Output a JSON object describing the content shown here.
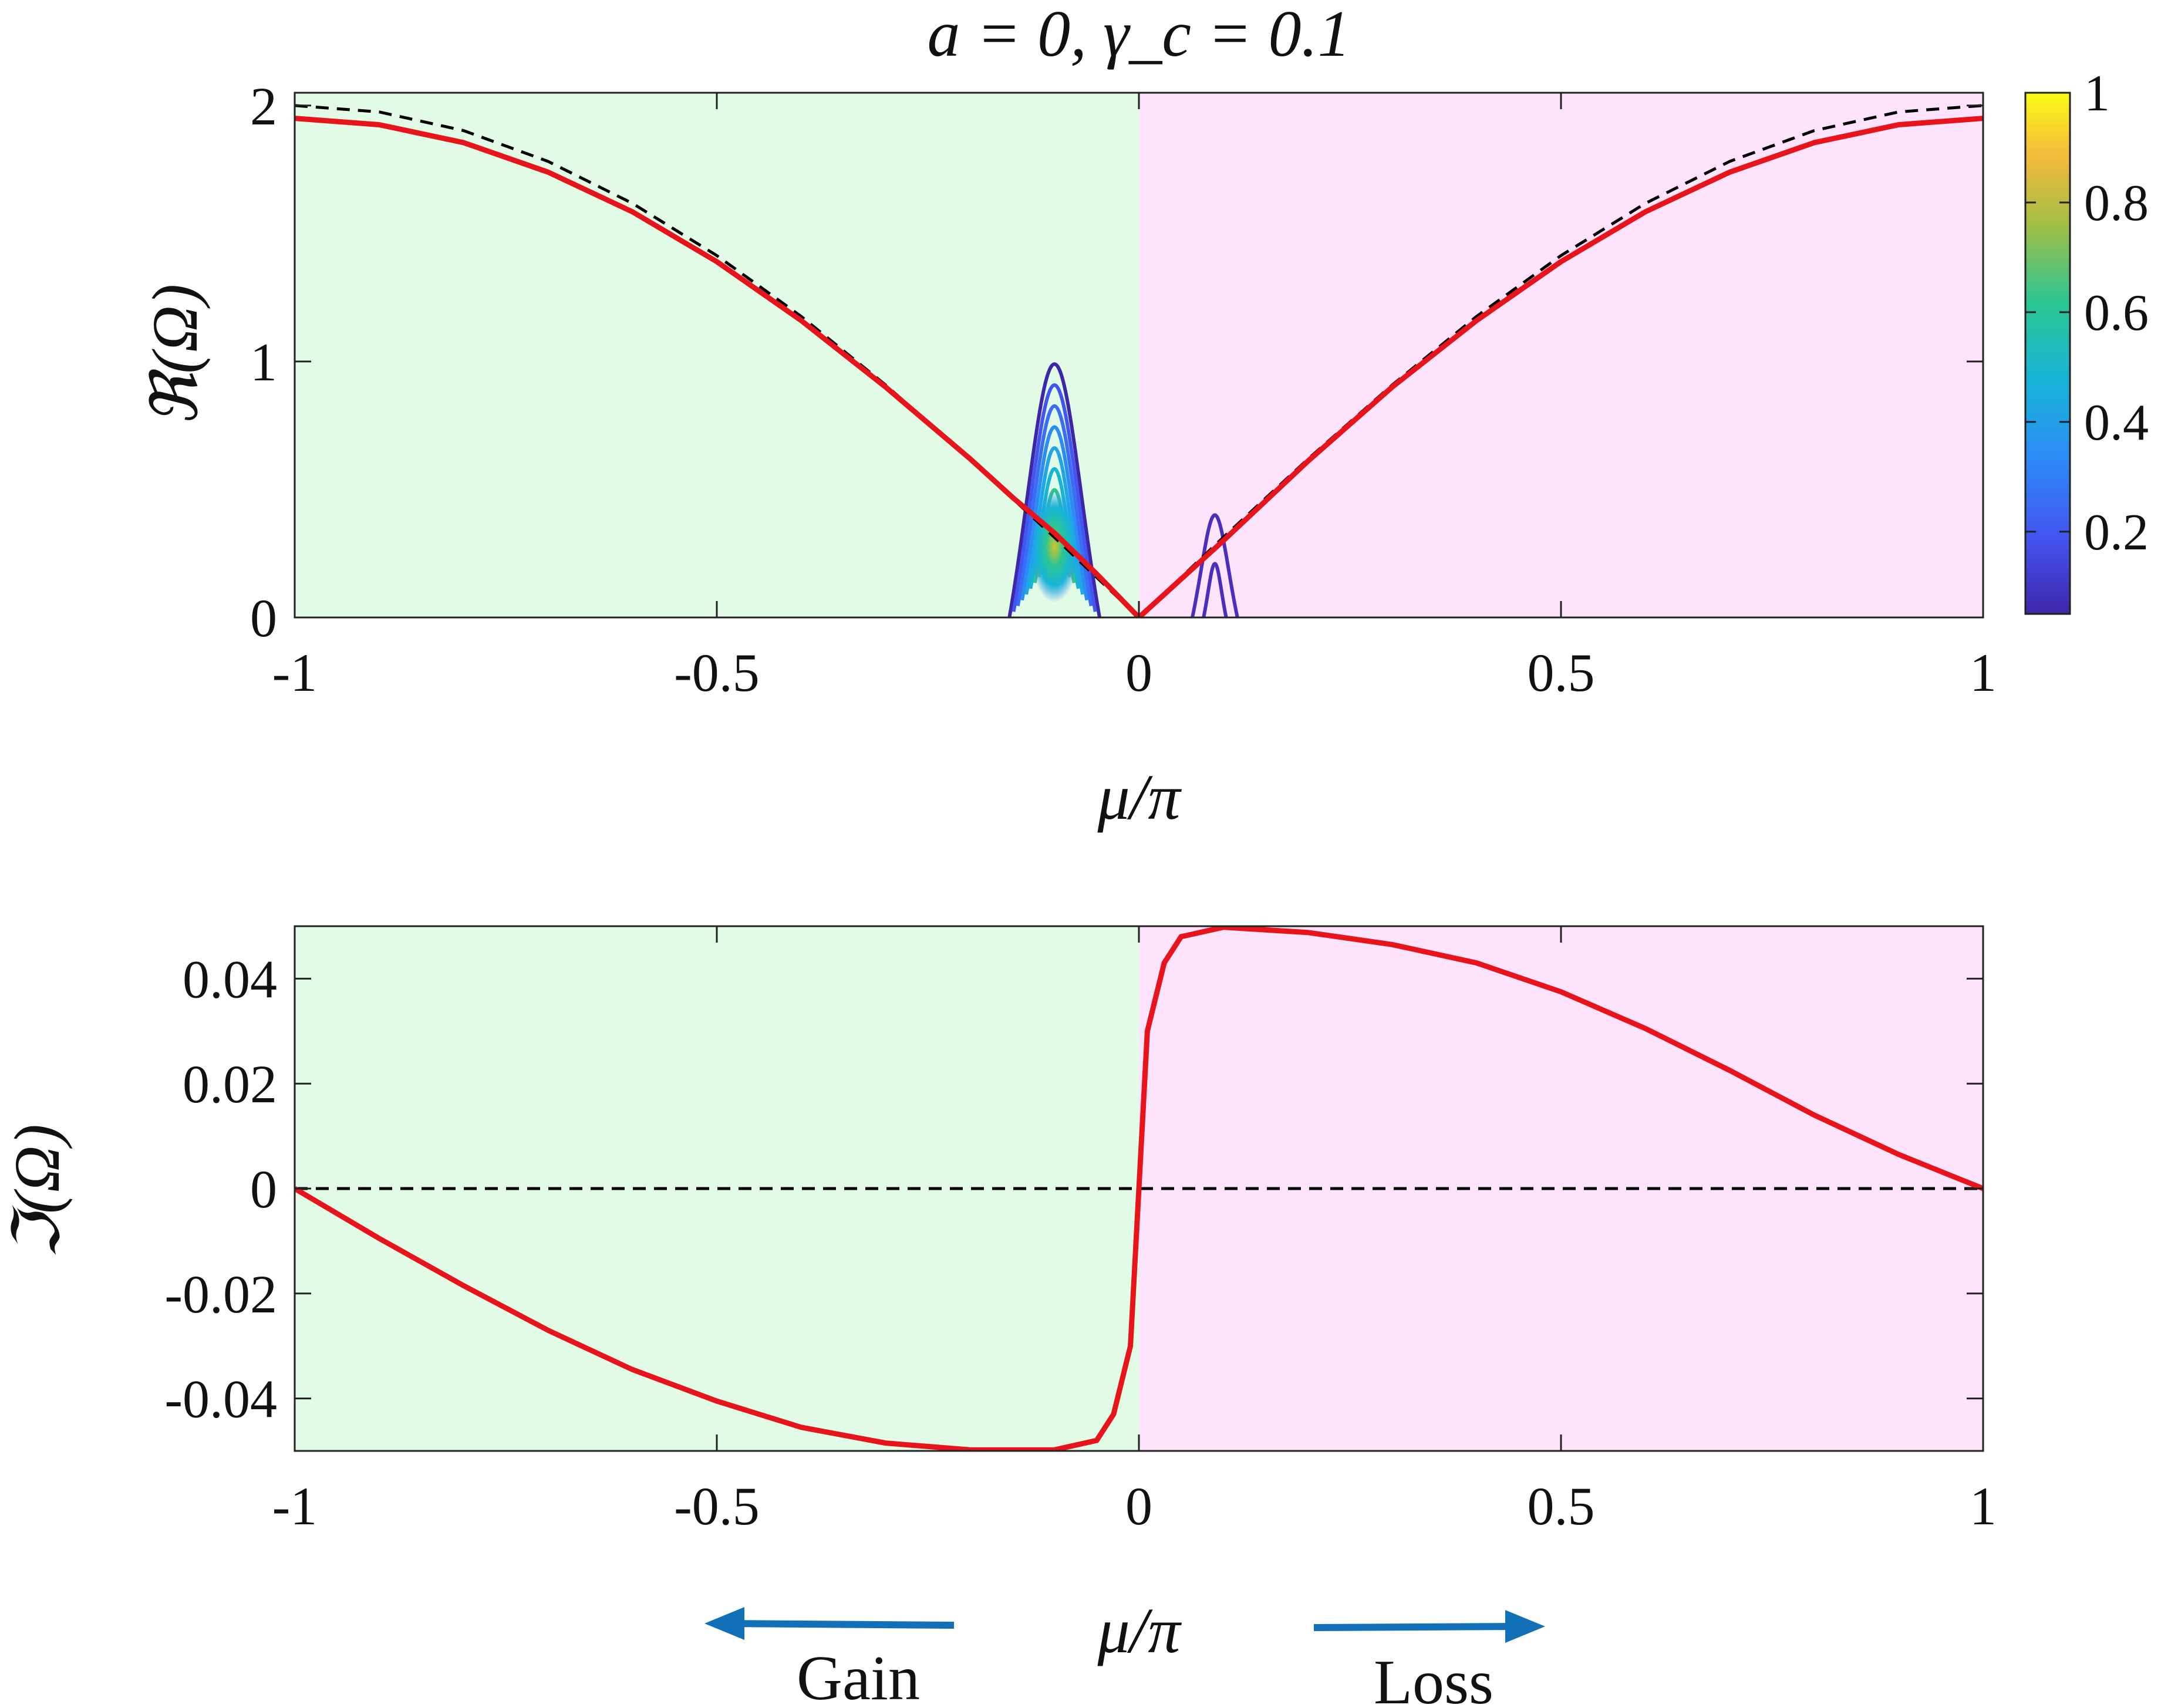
{
  "chart_data": [
    {
      "type": "line",
      "title": "a = 0, γ_c = 0.1",
      "xlabel": "μ/π",
      "ylabel": "ℜ(Ω)",
      "xlim": [
        -1,
        1
      ],
      "ylim": [
        0,
        2.05
      ],
      "xticks": [
        "-1",
        "-0.5",
        "0",
        "0.5",
        "1"
      ],
      "yticks": [
        "0",
        "1",
        "2"
      ],
      "regions": [
        {
          "x_range": [
            -1,
            0
          ],
          "color": "#e2fbe6"
        },
        {
          "x_range": [
            0,
            1
          ],
          "color": "#fde3fb"
        }
      ],
      "series": [
        {
          "style": "dashed",
          "color": "#000000",
          "x": [
            -1,
            -0.9,
            -0.8,
            -0.7,
            -0.6,
            -0.5,
            -0.4,
            -0.3,
            -0.2,
            -0.1,
            0,
            0.1,
            0.2,
            0.3,
            0.4,
            0.5,
            0.6,
            0.7,
            0.8,
            0.9,
            1
          ],
          "y": [
            2.0,
            1.975,
            1.902,
            1.782,
            1.618,
            1.414,
            1.176,
            0.908,
            0.618,
            0.313,
            0.0,
            0.313,
            0.618,
            0.908,
            1.176,
            1.414,
            1.618,
            1.782,
            1.902,
            1.975,
            2.0
          ]
        },
        {
          "style": "solid",
          "color": "#e8141b",
          "x": [
            -1,
            -0.9,
            -0.8,
            -0.7,
            -0.6,
            -0.5,
            -0.4,
            -0.3,
            -0.2,
            -0.15,
            -0.1,
            -0.05,
            0,
            0.05,
            0.1,
            0.2,
            0.3,
            0.4,
            0.5,
            0.6,
            0.7,
            0.8,
            0.9,
            1
          ],
          "y": [
            1.95,
            1.925,
            1.855,
            1.74,
            1.585,
            1.39,
            1.16,
            0.9,
            0.62,
            0.47,
            0.33,
            0.17,
            0.0,
            0.15,
            0.3,
            0.61,
            0.9,
            1.16,
            1.39,
            1.585,
            1.74,
            1.855,
            1.925,
            1.95
          ]
        }
      ],
      "contours": {
        "description": "intensity contour peaks",
        "peaks": [
          {
            "x": -0.1,
            "y": 0.3,
            "max": 1.0
          },
          {
            "x": 0.09,
            "y": 0.2,
            "max": 0.1
          }
        ]
      },
      "colorbar": {
        "range": [
          0.05,
          1
        ],
        "ticks": [
          "0.2",
          "0.4",
          "0.6",
          "0.8",
          "1"
        ],
        "colormap": "parula"
      }
    },
    {
      "type": "line",
      "xlabel": "μ/π",
      "ylabel": "ℑ(Ω)",
      "xlim": [
        -1,
        1
      ],
      "ylim": [
        -0.05,
        0.05
      ],
      "xticks": [
        "-1",
        "-0.5",
        "0",
        "0.5",
        "1"
      ],
      "yticks": [
        "-0.04",
        "-0.02",
        "0",
        "0.02",
        "0.04"
      ],
      "regions": [
        {
          "x_range": [
            -1,
            0
          ],
          "color": "#e2fbe6"
        },
        {
          "x_range": [
            0,
            1
          ],
          "color": "#fde3fb"
        }
      ],
      "series": [
        {
          "style": "dashed",
          "color": "#000000",
          "x": [
            -1,
            1
          ],
          "y": [
            0,
            0
          ]
        },
        {
          "style": "solid",
          "color": "#e8141b",
          "x": [
            -1,
            -0.9,
            -0.8,
            -0.7,
            -0.6,
            -0.5,
            -0.4,
            -0.3,
            -0.2,
            -0.1,
            -0.05,
            -0.03,
            -0.01,
            0,
            0.01,
            0.03,
            0.05,
            0.1,
            0.2,
            0.3,
            0.4,
            0.5,
            0.6,
            0.7,
            0.8,
            0.9,
            1
          ],
          "y": [
            0,
            -0.0095,
            -0.0185,
            -0.027,
            -0.0345,
            -0.0405,
            -0.0455,
            -0.0485,
            -0.0498,
            -0.0498,
            -0.048,
            -0.043,
            -0.03,
            0,
            0.03,
            0.043,
            0.048,
            0.0498,
            0.0488,
            0.0465,
            0.043,
            0.0375,
            0.0305,
            0.0225,
            0.014,
            0.0065,
            0
          ]
        }
      ]
    }
  ],
  "annotations": {
    "gain_label": "Gain",
    "loss_label": "Loss",
    "arrow_color": "#1270b8"
  }
}
